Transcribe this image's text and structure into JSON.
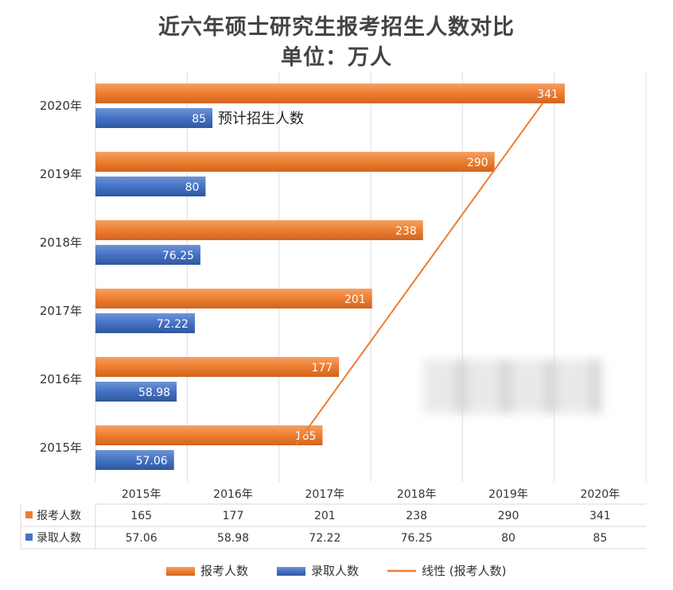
{
  "title": {
    "line1": "近六年硕士研究生报考招生人数对比",
    "line2": "单位：万人"
  },
  "chart_data": {
    "type": "bar",
    "orientation": "horizontal",
    "categories": [
      "2015年",
      "2016年",
      "2017年",
      "2018年",
      "2019年",
      "2020年"
    ],
    "series": [
      {
        "name": "报考人数",
        "values": [
          165,
          177,
          201,
          238,
          290,
          341
        ],
        "color": "#ed7d31"
      },
      {
        "name": "录取人数",
        "values": [
          57.06,
          58.98,
          72.22,
          76.25,
          80,
          85
        ],
        "color": "#4472c4"
      }
    ],
    "trendline": {
      "name": "线性 (报考人数)",
      "series": "报考人数",
      "color": "#ed7d31"
    },
    "annotation": "预计招生人数",
    "xlim": [
      0,
      400
    ],
    "grid": true,
    "data_table": true,
    "legend": "bottom"
  }
}
